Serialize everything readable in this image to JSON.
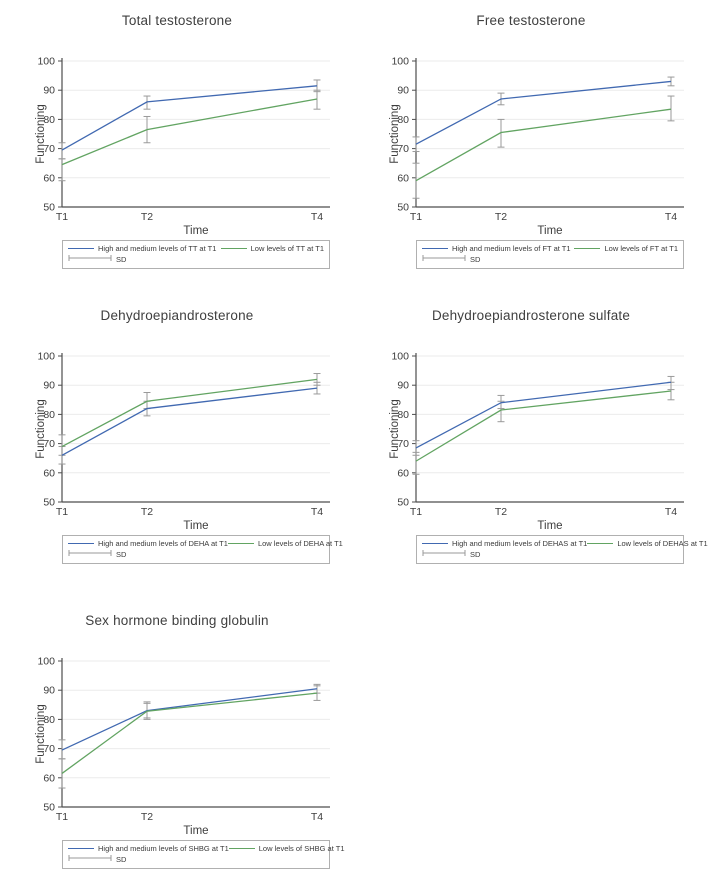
{
  "figure": {
    "background": "#ffffff"
  },
  "style": {
    "series_blue": "#4169b1",
    "series_green": "#62a462",
    "errorbar_color": "#9a9a9a",
    "grid_color": "#ebebeb",
    "axis_color": "#4d4d4d",
    "text_color": "#3d3d3d",
    "legend_border": "#b0b0b0"
  },
  "chart_data": [
    {
      "type": "line",
      "title": "Total testosterone",
      "xlabel": "Time",
      "ylabel": "Functioning",
      "x_categories": [
        "T1",
        "T2",
        "T4"
      ],
      "x_positions": [
        1,
        2,
        4
      ],
      "ylim": [
        50,
        100
      ],
      "y_ticks": [
        50,
        60,
        70,
        80,
        90,
        100
      ],
      "grid": "horizontal",
      "legend_position": "bottom",
      "sd_label": "SD",
      "series": [
        {
          "name": "High and medium levels of TT at T1",
          "color": "#4169b1",
          "values": [
            69.5,
            86,
            91.5
          ],
          "sd_low": [
            66.5,
            83.5,
            89.5
          ],
          "sd_high": [
            72,
            88,
            93.5
          ]
        },
        {
          "name": "Low levels of TT at T1",
          "color": "#62a462",
          "values": [
            64.5,
            76.5,
            87
          ],
          "sd_low": [
            59,
            72,
            83.5
          ],
          "sd_high": [
            66.5,
            81,
            90
          ]
        }
      ]
    },
    {
      "type": "line",
      "title": "Free testosterone",
      "xlabel": "Time",
      "ylabel": "Functioning",
      "x_categories": [
        "T1",
        "T2",
        "T4"
      ],
      "x_positions": [
        1,
        2,
        4
      ],
      "ylim": [
        50,
        100
      ],
      "y_ticks": [
        50,
        60,
        70,
        80,
        90,
        100
      ],
      "grid": "horizontal",
      "legend_position": "bottom",
      "sd_label": "SD",
      "series": [
        {
          "name": "High and medium levels of FT at T1",
          "color": "#4169b1",
          "values": [
            71.5,
            87,
            93
          ],
          "sd_low": [
            69,
            85,
            91.5
          ],
          "sd_high": [
            74,
            89,
            94.5
          ]
        },
        {
          "name": "Low levels of FT at T1",
          "color": "#62a462",
          "values": [
            59,
            75.5,
            83.5
          ],
          "sd_low": [
            53,
            70.5,
            79.5
          ],
          "sd_high": [
            65,
            80,
            88
          ]
        }
      ]
    },
    {
      "type": "line",
      "title": "Dehydroepiandrosterone",
      "xlabel": "Time",
      "ylabel": "Functioning",
      "x_categories": [
        "T1",
        "T2",
        "T4"
      ],
      "x_positions": [
        1,
        2,
        4
      ],
      "ylim": [
        50,
        100
      ],
      "y_ticks": [
        50,
        60,
        70,
        80,
        90,
        100
      ],
      "grid": "horizontal",
      "legend_position": "bottom",
      "sd_label": "SD",
      "series": [
        {
          "name": "High and medium levels of DEHA at T1",
          "color": "#4169b1",
          "values": [
            66,
            82,
            89
          ],
          "sd_low": [
            63,
            79.5,
            87
          ],
          "sd_high": [
            69,
            84.5,
            91
          ]
        },
        {
          "name": "Low levels of DEHA at T1",
          "color": "#62a462",
          "values": [
            69,
            84.5,
            92
          ],
          "sd_low": [
            66,
            82,
            90
          ],
          "sd_high": [
            73,
            87.5,
            94
          ]
        }
      ]
    },
    {
      "type": "line",
      "title": "Dehydroepiandrosterone sulfate",
      "xlabel": "Time",
      "ylabel": "Functioning",
      "x_categories": [
        "T1",
        "T2",
        "T4"
      ],
      "x_positions": [
        1,
        2,
        4
      ],
      "ylim": [
        50,
        100
      ],
      "y_ticks": [
        50,
        60,
        70,
        80,
        90,
        100
      ],
      "grid": "horizontal",
      "legend_position": "bottom",
      "sd_label": "SD",
      "series": [
        {
          "name": "High and medium levels of DEHAS at T1",
          "color": "#4169b1",
          "values": [
            68.5,
            84,
            91
          ],
          "sd_low": [
            66,
            82,
            88.5
          ],
          "sd_high": [
            71,
            86.5,
            93
          ]
        },
        {
          "name": "Low levels of DEHAS at T1",
          "color": "#62a462",
          "values": [
            64,
            81.5,
            88
          ],
          "sd_low": [
            59.5,
            77.5,
            85
          ],
          "sd_high": [
            67,
            84.5,
            91
          ]
        }
      ]
    },
    {
      "type": "line",
      "title": "Sex hormone binding globulin",
      "xlabel": "Time",
      "ylabel": "Functioning",
      "x_categories": [
        "T1",
        "T2",
        "T4"
      ],
      "x_positions": [
        1,
        2,
        4
      ],
      "ylim": [
        50,
        100
      ],
      "y_ticks": [
        50,
        60,
        70,
        80,
        90,
        100
      ],
      "grid": "horizontal",
      "legend_position": "bottom",
      "sd_label": "SD",
      "series": [
        {
          "name": "High and medium levels of SHBG at T1",
          "color": "#4169b1",
          "values": [
            69.5,
            83,
            90.5
          ],
          "sd_low": [
            66.5,
            80.5,
            89
          ],
          "sd_high": [
            73,
            85.5,
            92
          ]
        },
        {
          "name": "Low levels of SHBG at T1",
          "color": "#62a462",
          "values": [
            61.5,
            82.8,
            89
          ],
          "sd_low": [
            56.5,
            80,
            86.5
          ],
          "sd_high": [
            66.5,
            86,
            91.5
          ]
        }
      ]
    }
  ]
}
